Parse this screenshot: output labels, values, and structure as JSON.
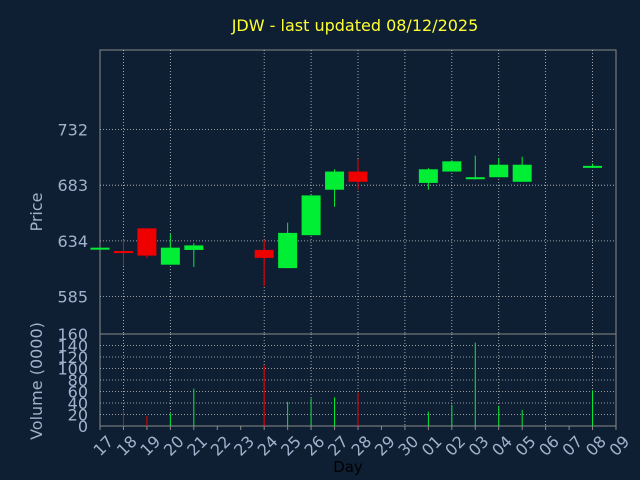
{
  "chart_data": {
    "type": "candlestick",
    "title": "JDW - last updated 08/12/2025",
    "xlabel": "Day",
    "colors": {
      "background": "#0f1f33",
      "plot_border": "#8a8a8a",
      "grid": "#c8c8c8",
      "title": "#ffff33",
      "axis_text": "#9fb3cc",
      "up": "#00ee33",
      "down": "#ee0000"
    },
    "x_ticks": [
      "17",
      "18",
      "19",
      "20",
      "21",
      "22",
      "23",
      "24",
      "25",
      "26",
      "27",
      "28",
      "29",
      "30",
      "01",
      "02",
      "03",
      "04",
      "05",
      "06",
      "07",
      "08",
      "09"
    ],
    "price_panel": {
      "ylabel": "Price",
      "ylim": [
        552,
        802
      ],
      "y_ticks": [
        585,
        634,
        683,
        732
      ],
      "candles": [
        {
          "day": "17",
          "open": 628,
          "high": 628,
          "low": 628,
          "close": 628
        },
        {
          "day": "18",
          "open": 625,
          "high": 635,
          "low": 612,
          "close": 624
        },
        {
          "day": "19",
          "open": 645,
          "high": 645,
          "low": 619,
          "close": 621
        },
        {
          "day": "20",
          "open": 613,
          "high": 640,
          "low": 613,
          "close": 628
        },
        {
          "day": "21",
          "open": 626,
          "high": 632,
          "low": 611,
          "close": 630
        },
        {
          "day": "24",
          "open": 626,
          "high": 635,
          "low": 594,
          "close": 619
        },
        {
          "day": "25",
          "open": 610,
          "high": 650,
          "low": 610,
          "close": 641
        },
        {
          "day": "26",
          "open": 639,
          "high": 674,
          "low": 639,
          "close": 674
        },
        {
          "day": "27",
          "open": 679,
          "high": 697,
          "low": 664,
          "close": 695
        },
        {
          "day": "28",
          "open": 695,
          "high": 706,
          "low": 679,
          "close": 686
        },
        {
          "day": "01",
          "open": 685,
          "high": 698,
          "low": 679,
          "close": 697
        },
        {
          "day": "02",
          "open": 695,
          "high": 705,
          "low": 695,
          "close": 704
        },
        {
          "day": "03",
          "open": 689,
          "high": 709,
          "low": 688,
          "close": 690
        },
        {
          "day": "04",
          "open": 690,
          "high": 707,
          "low": 690,
          "close": 701
        },
        {
          "day": "05",
          "open": 686,
          "high": 708,
          "low": 686,
          "close": 701
        },
        {
          "day": "08",
          "open": 699,
          "high": 702,
          "low": 699,
          "close": 700
        }
      ]
    },
    "volume_panel": {
      "ylabel": "Volume (0000)",
      "ylim": [
        0,
        160
      ],
      "y_ticks": [
        0,
        20,
        40,
        60,
        80,
        100,
        120,
        140,
        160
      ],
      "bars": [
        {
          "day": "18",
          "value": 27,
          "direction": "down"
        },
        {
          "day": "19",
          "value": 17,
          "direction": "down"
        },
        {
          "day": "20",
          "value": 22,
          "direction": "up"
        },
        {
          "day": "21",
          "value": 65,
          "direction": "up"
        },
        {
          "day": "24",
          "value": 105,
          "direction": "down"
        },
        {
          "day": "25",
          "value": 42,
          "direction": "up"
        },
        {
          "day": "26",
          "value": 48,
          "direction": "up"
        },
        {
          "day": "27",
          "value": 50,
          "direction": "up"
        },
        {
          "day": "28",
          "value": 58,
          "direction": "down"
        },
        {
          "day": "01",
          "value": 25,
          "direction": "up"
        },
        {
          "day": "02",
          "value": 37,
          "direction": "up"
        },
        {
          "day": "03",
          "value": 145,
          "direction": "up"
        },
        {
          "day": "04",
          "value": 35,
          "direction": "up"
        },
        {
          "day": "05",
          "value": 28,
          "direction": "up"
        },
        {
          "day": "08",
          "value": 62,
          "direction": "up"
        }
      ]
    }
  }
}
